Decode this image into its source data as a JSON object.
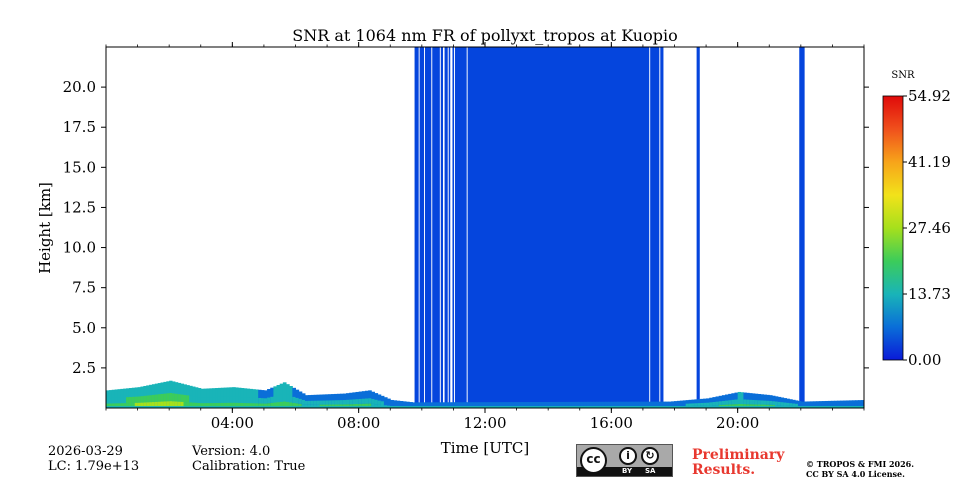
{
  "chart_data": {
    "type": "heatmap",
    "title": "SNR at 1064 nm FR of pollyxt_tropos at Kuopio",
    "xlabel": "Time [UTC]",
    "ylabel": "Height [km]",
    "xlim_hours": [
      0,
      24
    ],
    "ylim_km": [
      0,
      22.5
    ],
    "x_ticks": [
      {
        "value": 4,
        "label": "04:00"
      },
      {
        "value": 8,
        "label": "08:00"
      },
      {
        "value": 12,
        "label": "12:00"
      },
      {
        "value": 16,
        "label": "16:00"
      },
      {
        "value": 20,
        "label": "20:00"
      }
    ],
    "y_ticks": [
      {
        "value": 2.5,
        "label": "2.5"
      },
      {
        "value": 5.0,
        "label": "5.0"
      },
      {
        "value": 7.5,
        "label": "7.5"
      },
      {
        "value": 10.0,
        "label": "10.0"
      },
      {
        "value": 12.5,
        "label": "12.5"
      },
      {
        "value": 15.0,
        "label": "15.0"
      },
      {
        "value": 17.5,
        "label": "17.5"
      },
      {
        "value": 20.0,
        "label": "20.0"
      }
    ],
    "colorbar": {
      "label": "SNR",
      "min": 0.0,
      "max": 54.92,
      "ticks": [
        {
          "value": 0.0,
          "label": "0.00"
        },
        {
          "value": 13.73,
          "label": "13.73"
        },
        {
          "value": 27.46,
          "label": "27.46"
        },
        {
          "value": 41.19,
          "label": "41.19"
        },
        {
          "value": 54.92,
          "label": "54.92"
        }
      ],
      "colors": [
        "#0a1ad8",
        "#0a6ed8",
        "#19b4b8",
        "#3ccc5a",
        "#a6e01c",
        "#f2e21a",
        "#f7a41a",
        "#f0501c",
        "#e00a0a"
      ]
    },
    "low_snr_fill_color": "#0545dd",
    "low_snr_main_block_hours": [
      11.45,
      17.2
    ],
    "low_snr_column_groups": [
      {
        "start": 9.77,
        "end": 9.9
      },
      {
        "start": 9.93,
        "end": 10.07
      },
      {
        "start": 10.1,
        "end": 10.3
      },
      {
        "start": 10.33,
        "end": 10.57
      },
      {
        "start": 10.6,
        "end": 10.67
      },
      {
        "start": 10.72,
        "end": 10.82
      },
      {
        "start": 10.85,
        "end": 10.9
      },
      {
        "start": 10.97,
        "end": 11.02
      },
      {
        "start": 11.05,
        "end": 11.42
      },
      {
        "start": 17.23,
        "end": 17.52
      },
      {
        "start": 17.55,
        "end": 17.65
      },
      {
        "start": 18.7,
        "end": 18.8
      },
      {
        "start": 21.95,
        "end": 22.12
      }
    ],
    "boundary_layer_profile": [
      {
        "t": 0.0,
        "h": 1.1,
        "snr": 16
      },
      {
        "t": 1.0,
        "h": 1.3,
        "snr": 18
      },
      {
        "t": 2.0,
        "h": 1.7,
        "snr": 20
      },
      {
        "t": 3.0,
        "h": 1.2,
        "snr": 15
      },
      {
        "t": 4.0,
        "h": 1.3,
        "snr": 17
      },
      {
        "t": 5.0,
        "h": 1.1,
        "snr": 14
      },
      {
        "t": 5.6,
        "h": 1.6,
        "snr": 16
      },
      {
        "t": 6.3,
        "h": 0.8,
        "snr": 12
      },
      {
        "t": 7.5,
        "h": 0.9,
        "snr": 14
      },
      {
        "t": 8.3,
        "h": 1.1,
        "snr": 13
      },
      {
        "t": 9.0,
        "h": 0.5,
        "snr": 9
      },
      {
        "t": 9.7,
        "h": 0.35,
        "snr": 8
      },
      {
        "t": 17.8,
        "h": 0.4,
        "snr": 9
      },
      {
        "t": 19.0,
        "h": 0.6,
        "snr": 12
      },
      {
        "t": 19.5,
        "h": 0.8,
        "snr": 13
      },
      {
        "t": 20.0,
        "h": 1.0,
        "snr": 15
      },
      {
        "t": 21.0,
        "h": 0.8,
        "snr": 13
      },
      {
        "t": 22.0,
        "h": 0.4,
        "snr": 10
      },
      {
        "t": 24.0,
        "h": 0.5,
        "snr": 10
      }
    ]
  },
  "footer": {
    "date": "2026-03-29",
    "lc": "LC: 1.79e+13",
    "version": "Version: 4.0",
    "calibration": "Calibration: True",
    "license_badge": {
      "by": "BY",
      "sa": "SA"
    },
    "preliminary_line1": "Preliminary",
    "preliminary_line2": "Results.",
    "copyright_line1": "© TROPOS & FMI 2026.",
    "copyright_line2": "CC BY SA 4.0 License."
  }
}
